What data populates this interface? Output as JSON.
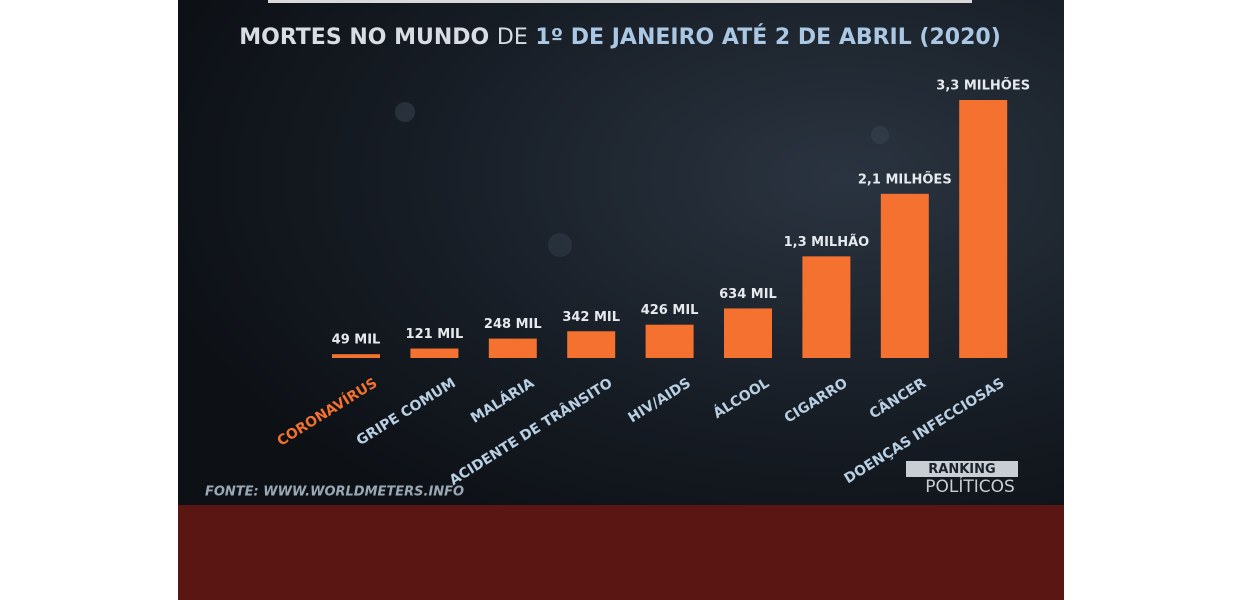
{
  "chart_data": {
    "type": "bar",
    "title": [
      "MORTES NO MUNDO",
      "DE",
      "1º DE JANEIRO ATÉ 2 DE ABRIL (2020)"
    ],
    "categories": [
      "CORONAVÍRUS",
      "GRIPE COMUM",
      "MALÁRIA",
      "ACIDENTE DE TRÂNSITO",
      "HIV/AIDS",
      "ÁLCOOL",
      "CIGARRO",
      "CÂNCER",
      "DOENÇAS INFECCIOSAS"
    ],
    "values": [
      49000,
      121000,
      248000,
      342000,
      426000,
      634000,
      1300000,
      2100000,
      3300000
    ],
    "value_labels": [
      "49 MIL",
      "121 MIL",
      "248 MIL",
      "342 MIL",
      "426 MIL",
      "634 MIL",
      "1,3 MILHÃO",
      "2,1 MILHÕES",
      "3,3 MILHÕES"
    ],
    "color": "#f4712f",
    "label_colors": [
      "#f4712f",
      "#b9cfe3",
      "#b9cfe3",
      "#b9cfe3",
      "#b9cfe3",
      "#b9cfe3",
      "#b9cfe3",
      "#b9cfe3",
      "#b9cfe3"
    ],
    "source": "FONTE: WWW.WORLDMETERS.INFO",
    "brand": [
      "RANKING",
      "POLÍTICOS"
    ]
  }
}
